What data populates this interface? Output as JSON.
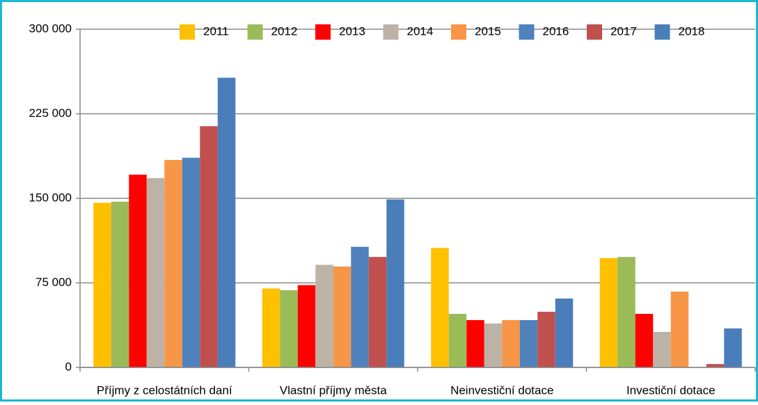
{
  "chart_data": {
    "type": "bar",
    "categories": [
      "Příjmy z celostátních daní",
      "Vlastní příjmy města",
      "Neinvestiční dotace",
      "Investiční dotace"
    ],
    "series": [
      {
        "name": "2011",
        "color": "#ffc000",
        "values": [
          146000,
          70000,
          106000,
          97000
        ]
      },
      {
        "name": "2012",
        "color": "#9bbb59",
        "values": [
          147000,
          68500,
          47500,
          98000
        ]
      },
      {
        "name": "2013",
        "color": "#ff0000",
        "values": [
          171000,
          73000,
          42000,
          47500
        ]
      },
      {
        "name": "2014",
        "color": "#bcb3a6",
        "values": [
          168000,
          91000,
          39000,
          31500
        ]
      },
      {
        "name": "2015",
        "color": "#f79646",
        "values": [
          184000,
          89500,
          42000,
          67300
        ]
      },
      {
        "name": "2016",
        "color": "#4f81bd",
        "values": [
          186000,
          107000,
          42000,
          0
        ]
      },
      {
        "name": "2017",
        "color": "#c0504d",
        "values": [
          214000,
          98000,
          49400,
          3000
        ]
      },
      {
        "name": "2018",
        "color": "#4a7ebb",
        "values": [
          257000,
          149000,
          61100,
          34600
        ]
      }
    ],
    "ylim": [
      0,
      300000
    ],
    "yticks": [
      0,
      {
        "value": 75000,
        "label": "75 000"
      },
      {
        "value": 150000,
        "label": "150 000"
      },
      {
        "value": 225000,
        "label": "225 000"
      },
      {
        "value": 300000,
        "label": "300 000"
      }
    ],
    "grid": true,
    "legend": "top"
  }
}
